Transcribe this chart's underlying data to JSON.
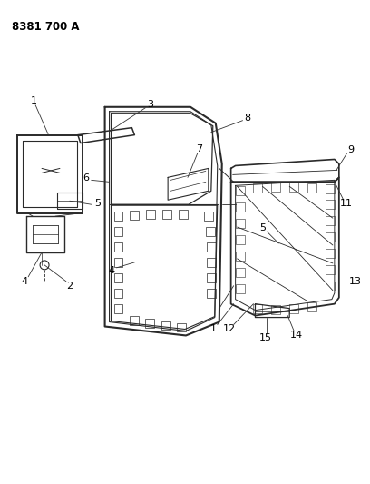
{
  "title": "8381 700 A",
  "bg_color": "#ffffff",
  "line_color": "#2a2a2a",
  "label_color": "#000000",
  "title_fontsize": 8.5,
  "label_fontsize": 7.5,
  "fig_width": 4.08,
  "fig_height": 5.33,
  "dpi": 100
}
